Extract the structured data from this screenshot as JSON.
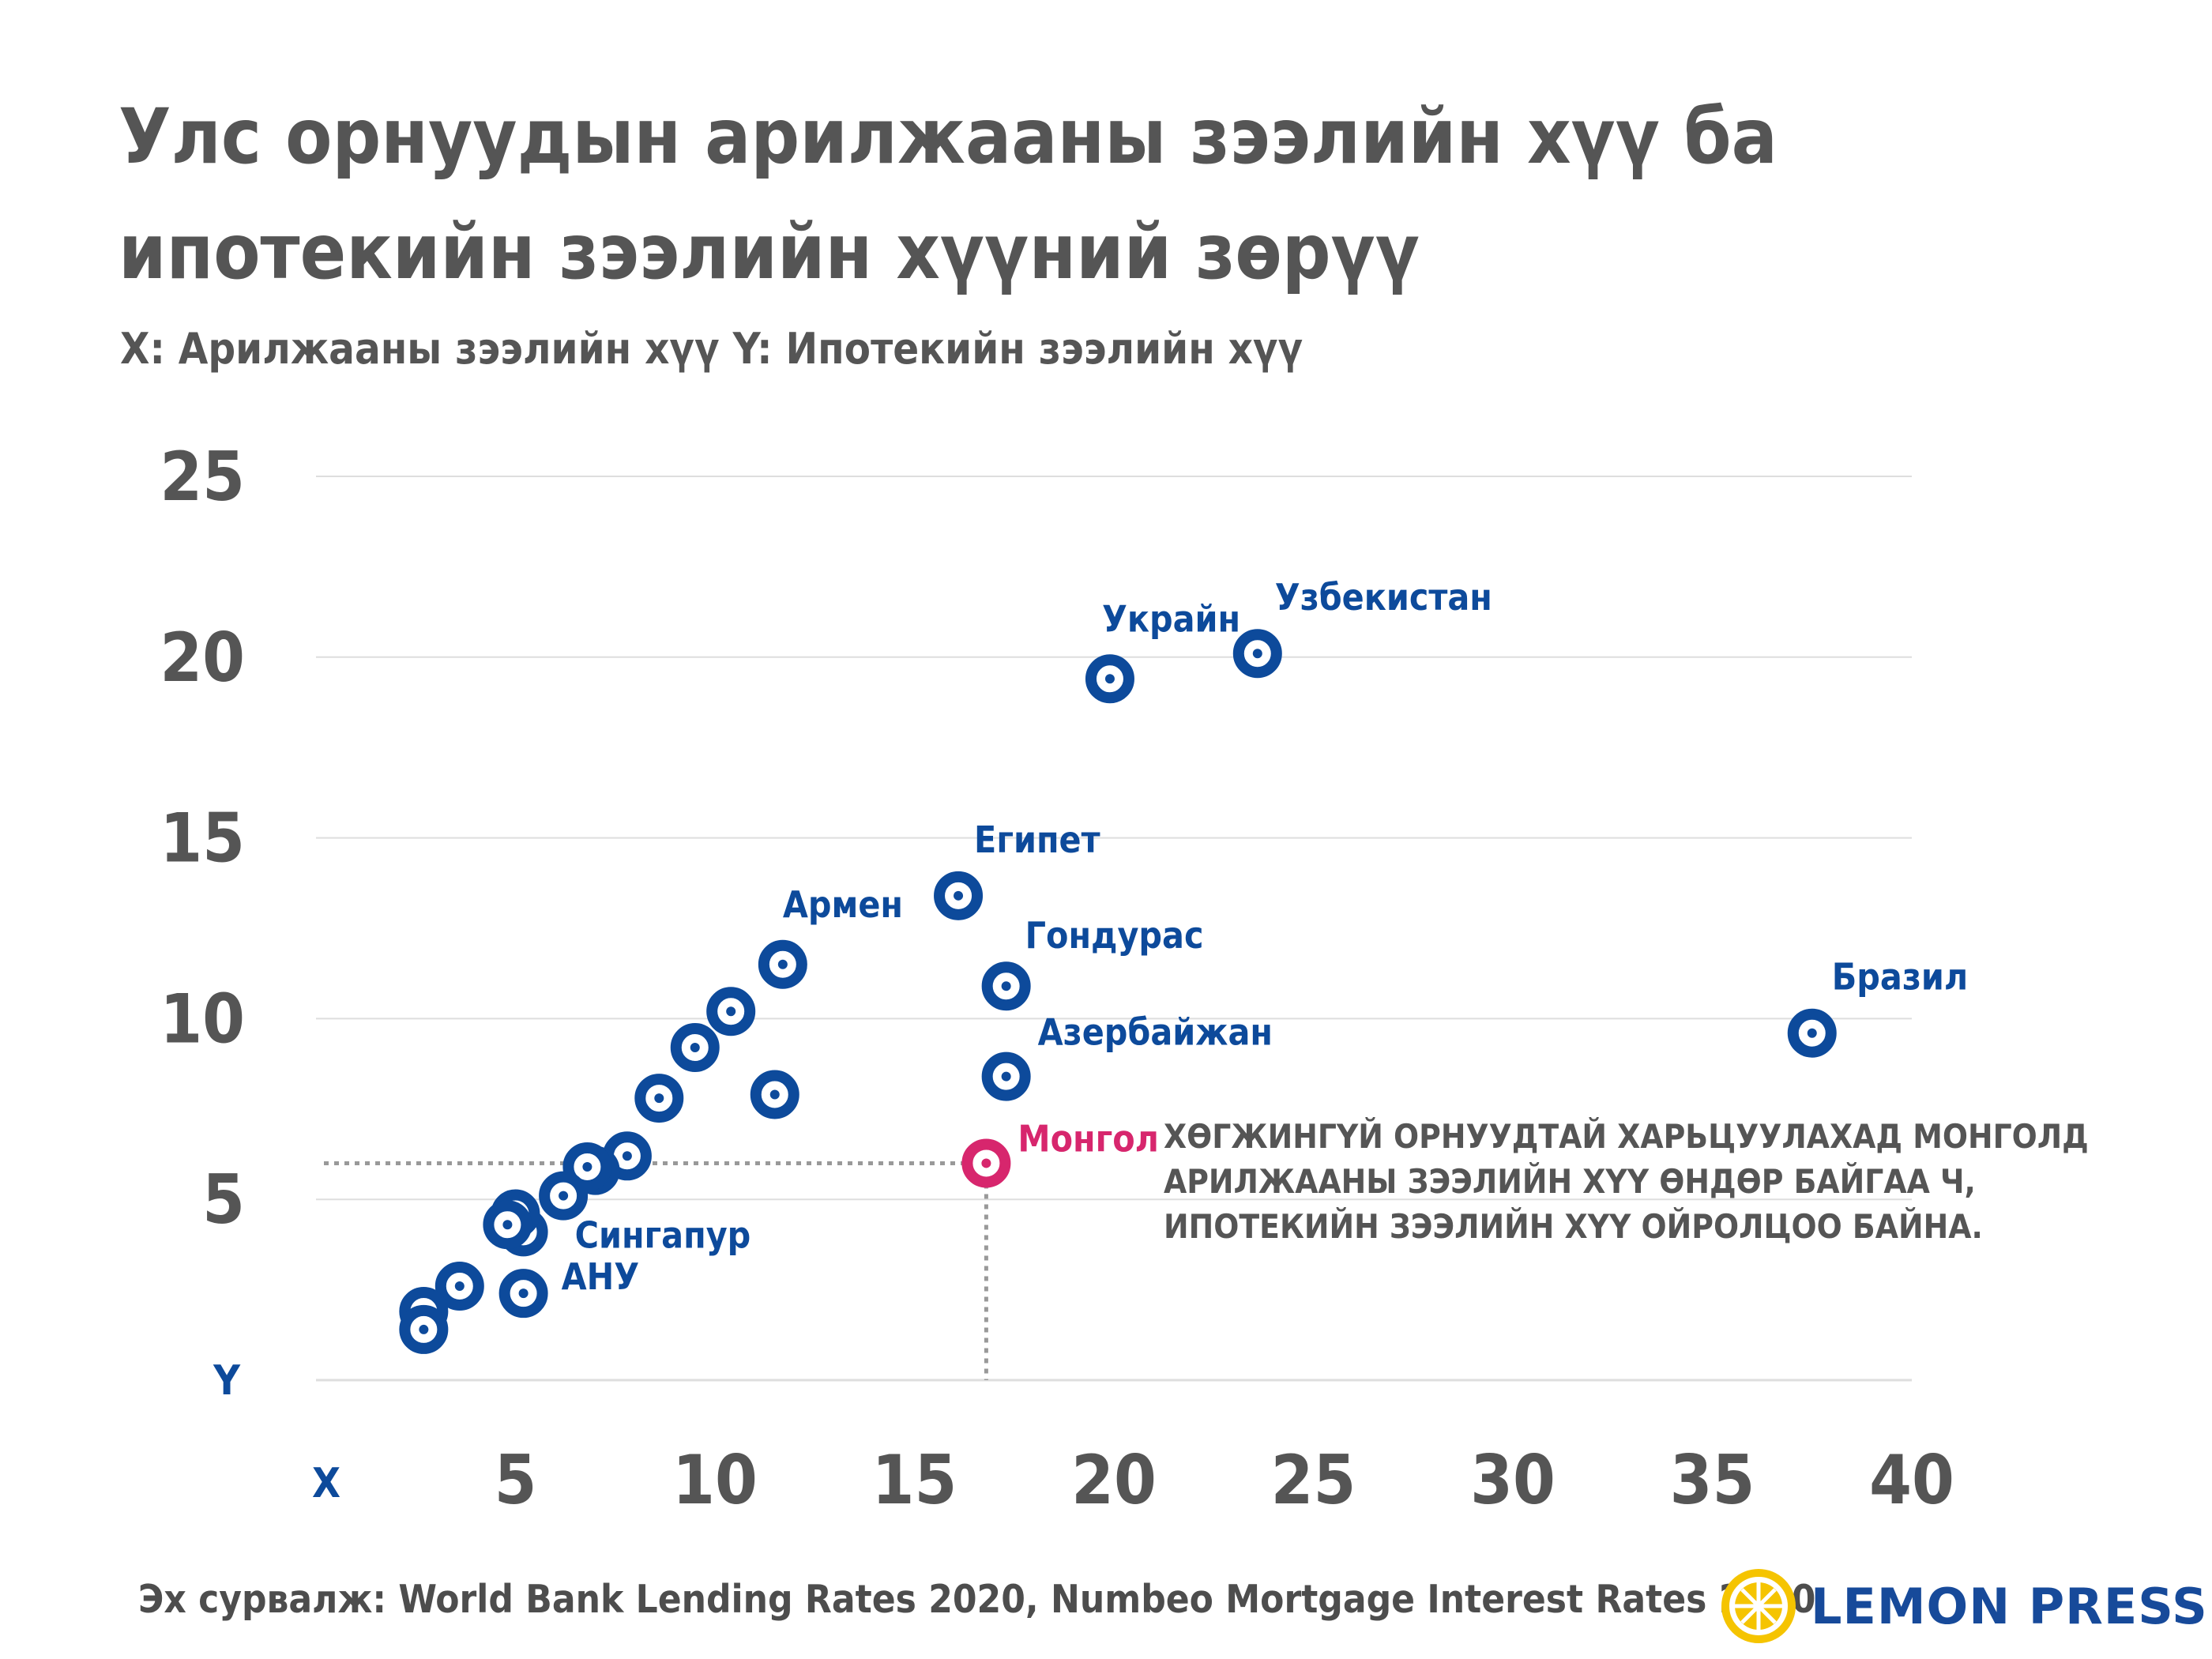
{
  "title": "Улс орнуудын арилжааны зээлийн хүү ба ипотекийн зээлийн хүүний зөрүү",
  "subtitle": "X: Арилжааны зээлийн хүү Y: Ипотекийн зээлийн хүү",
  "footer": {
    "source": "Эх сурвалж: World Bank Lending Rates 2020, Numbeo Mortgage Interest Rates 2020",
    "brand": "LEMON PRESS"
  },
  "annotation": {
    "lines": [
      "ХӨГЖИНГҮЙ ОРНУУДТАЙ ХАРЬЦУУЛАХАД МОНГОЛД",
      "АРИЛЖААНЫ ЗЭЭЛИЙН ХҮҮ ӨНДӨР БАЙГАА Ч,",
      "ИПОТЕКИЙН ЗЭЭЛИЙН ХҮҮ ОЙРОЛЦОО БАЙНА."
    ]
  },
  "colors": {
    "point": "#0d4a9b",
    "highlight": "#d7266d",
    "axis_text": "#555555",
    "grid": "#dedede",
    "annotation": "#555555",
    "brand": "#174a9a",
    "lemon": "#f5c400"
  },
  "chart_data": {
    "type": "scatter",
    "xlabel": "X",
    "ylabel": "Y",
    "xlim": [
      0,
      40
    ],
    "ylim": [
      0,
      25
    ],
    "xticks": [
      5,
      10,
      15,
      20,
      25,
      30,
      35,
      40
    ],
    "yticks": [
      5,
      10,
      15,
      20,
      25
    ],
    "grid": "horizontal",
    "reference_lines": [
      {
        "x": 16.8,
        "y": 6.0
      }
    ],
    "points": [
      {
        "x": 19.9,
        "y": 19.4,
        "label": "Украйн"
      },
      {
        "x": 23.6,
        "y": 20.1,
        "label": "Узбекистан"
      },
      {
        "x": 16.1,
        "y": 13.4,
        "label": "Египет"
      },
      {
        "x": 11.7,
        "y": 11.5,
        "label": "Армен"
      },
      {
        "x": 17.3,
        "y": 10.9,
        "label": "Гондурас"
      },
      {
        "x": 37.5,
        "y": 9.6,
        "label": "Бразил"
      },
      {
        "x": 17.3,
        "y": 8.4,
        "label": "Азербайжан"
      },
      {
        "x": 16.8,
        "y": 6.0,
        "label": "Монгол",
        "highlight": true
      },
      {
        "x": 5.2,
        "y": 4.1,
        "label": "Сингапур"
      },
      {
        "x": 5.2,
        "y": 2.4,
        "label": "АНУ"
      },
      {
        "x": 10.4,
        "y": 10.2
      },
      {
        "x": 9.5,
        "y": 9.2
      },
      {
        "x": 8.6,
        "y": 7.8
      },
      {
        "x": 11.5,
        "y": 7.9
      },
      {
        "x": 7.8,
        "y": 6.2
      },
      {
        "x": 7.0,
        "y": 5.8
      },
      {
        "x": 6.8,
        "y": 5.9
      },
      {
        "x": 6.2,
        "y": 5.1
      },
      {
        "x": 5.0,
        "y": 4.6
      },
      {
        "x": 4.8,
        "y": 4.3
      },
      {
        "x": 3.6,
        "y": 2.6
      },
      {
        "x": 2.7,
        "y": 1.9
      },
      {
        "x": 2.7,
        "y": 1.4
      }
    ]
  }
}
